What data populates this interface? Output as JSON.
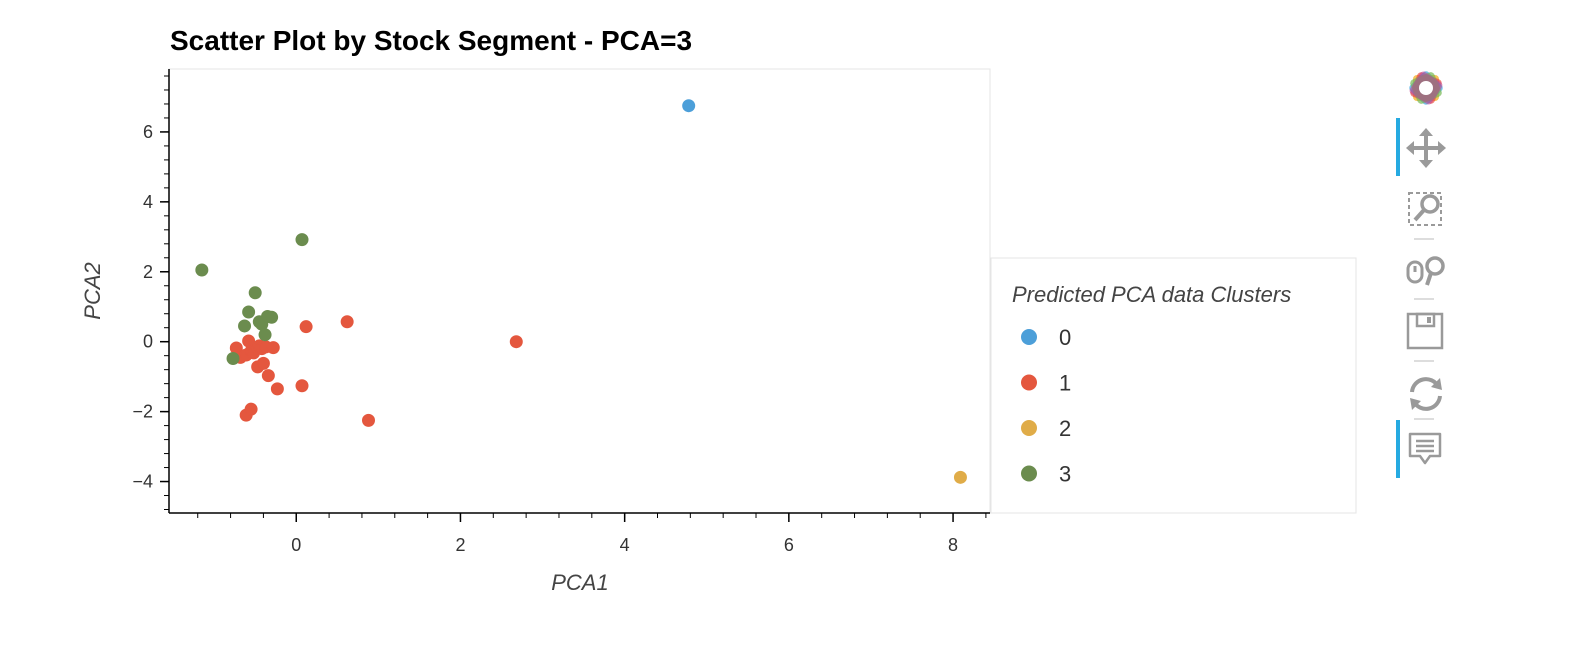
{
  "chart_data": {
    "type": "scatter",
    "title": "Scatter Plot by Stock Segment - PCA=3",
    "xlabel": "PCA1",
    "ylabel": "PCA2",
    "xlim": [
      -1.55,
      8.45
    ],
    "ylim": [
      -4.9,
      7.8
    ],
    "xticks": [
      0,
      2,
      4,
      6,
      8
    ],
    "yticks": [
      -4,
      -2,
      0,
      2,
      4,
      6
    ],
    "grid": false,
    "legend": {
      "title": "Predicted PCA data Clusters",
      "placement": "right"
    },
    "series": [
      {
        "name": "0",
        "color": "#4c9fd9",
        "points": [
          [
            4.78,
            6.75
          ]
        ]
      },
      {
        "name": "1",
        "color": "#e4573e",
        "points": [
          [
            -0.73,
            -0.18
          ],
          [
            -0.68,
            -0.45
          ],
          [
            -0.61,
            -0.38
          ],
          [
            -0.58,
            0.02
          ],
          [
            -0.55,
            -0.27
          ],
          [
            -0.52,
            -0.32
          ],
          [
            -0.48,
            -0.18
          ],
          [
            -0.47,
            -0.72
          ],
          [
            -0.45,
            -0.12
          ],
          [
            -0.42,
            -0.2
          ],
          [
            -0.4,
            -0.62
          ],
          [
            -0.37,
            -0.15
          ],
          [
            -0.34,
            -0.97
          ],
          [
            -0.28,
            -0.17
          ],
          [
            -0.23,
            -1.35
          ],
          [
            -0.61,
            -2.1
          ],
          [
            -0.55,
            -1.93
          ],
          [
            0.07,
            -1.26
          ],
          [
            0.12,
            0.43
          ],
          [
            0.62,
            0.57
          ],
          [
            0.88,
            -2.25
          ],
          [
            2.68,
            0.0
          ]
        ]
      },
      {
        "name": "2",
        "color": "#e0ac48",
        "points": [
          [
            8.09,
            -3.88
          ]
        ]
      },
      {
        "name": "3",
        "color": "#6b8c4e",
        "points": [
          [
            -1.15,
            2.05
          ],
          [
            0.07,
            2.92
          ],
          [
            -0.5,
            1.4
          ],
          [
            -0.58,
            0.85
          ],
          [
            -0.45,
            0.57
          ],
          [
            -0.42,
            0.5
          ],
          [
            -0.35,
            0.72
          ],
          [
            -0.3,
            0.7
          ],
          [
            -0.63,
            0.45
          ],
          [
            -0.38,
            0.2
          ],
          [
            -0.77,
            -0.48
          ]
        ]
      }
    ]
  },
  "toolbar": {
    "tools": [
      {
        "name": "pan-tool",
        "icon": "move-icon",
        "active": true
      },
      {
        "name": "box-zoom-tool",
        "icon": "box-zoom-icon",
        "active": false
      },
      {
        "name": "wheel-zoom-tool",
        "icon": "wheel-zoom-icon",
        "active": false
      },
      {
        "name": "save-tool",
        "icon": "save-icon",
        "active": false
      },
      {
        "name": "reset-tool",
        "icon": "reset-icon",
        "active": false
      },
      {
        "name": "hover-tool",
        "icon": "hover-icon",
        "active": true
      }
    ]
  }
}
